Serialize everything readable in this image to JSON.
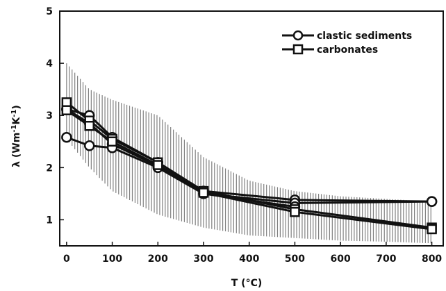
{
  "chart_data": {
    "type": "line",
    "xlabel": "T (°C)",
    "ylabel_main": "λ (Wm",
    "ylabel_sup1": "-1",
    "ylabel_mid": "K",
    "ylabel_sup2": "-1",
    "ylabel_end": ")",
    "xlim": [
      -15,
      825
    ],
    "ylim": [
      0.5,
      5
    ],
    "x_ticks": [
      0,
      100,
      200,
      300,
      400,
      500,
      600,
      700,
      800
    ],
    "y_ticks": [
      1,
      2,
      3,
      4,
      5
    ],
    "grid": false,
    "legend_position": "top-right",
    "series": [
      {
        "name": "clastic sediments",
        "marker": "circle",
        "lines": [
          {
            "x": [
              0,
              50,
              100,
              200,
              300,
              500,
              800
            ],
            "y": [
              3.12,
              3.0,
              2.58,
              2.1,
              1.55,
              1.38,
              1.35
            ]
          },
          {
            "x": [
              0,
              50,
              100,
              200,
              300,
              500,
              800
            ],
            "y": [
              3.12,
              2.85,
              2.45,
              2.03,
              1.5,
              1.32,
              1.35
            ]
          },
          {
            "x": [
              0,
              50,
              100,
              200,
              300,
              500
            ],
            "y": [
              2.58,
              2.42,
              2.38,
              2.0,
              1.5,
              1.25
            ]
          }
        ]
      },
      {
        "name": "carbonates",
        "marker": "square",
        "lines": [
          {
            "x": [
              0,
              50,
              100,
              200,
              300,
              500,
              800
            ],
            "y": [
              3.25,
              2.9,
              2.55,
              2.1,
              1.55,
              1.2,
              0.85
            ]
          },
          {
            "x": [
              0,
              50,
              100,
              200,
              300,
              500,
              800
            ],
            "y": [
              3.1,
              2.8,
              2.5,
              2.05,
              1.52,
              1.15,
              0.82
            ]
          }
        ]
      }
    ],
    "band": {
      "x": [
        0,
        50,
        100,
        200,
        300,
        400,
        500,
        600,
        700,
        800
      ],
      "lower": [
        2.55,
        2.0,
        1.55,
        1.1,
        0.85,
        0.7,
        0.65,
        0.6,
        0.58,
        0.55
      ],
      "upper": [
        4.0,
        3.5,
        3.3,
        3.0,
        2.2,
        1.75,
        1.55,
        1.45,
        1.4,
        1.35
      ]
    }
  }
}
